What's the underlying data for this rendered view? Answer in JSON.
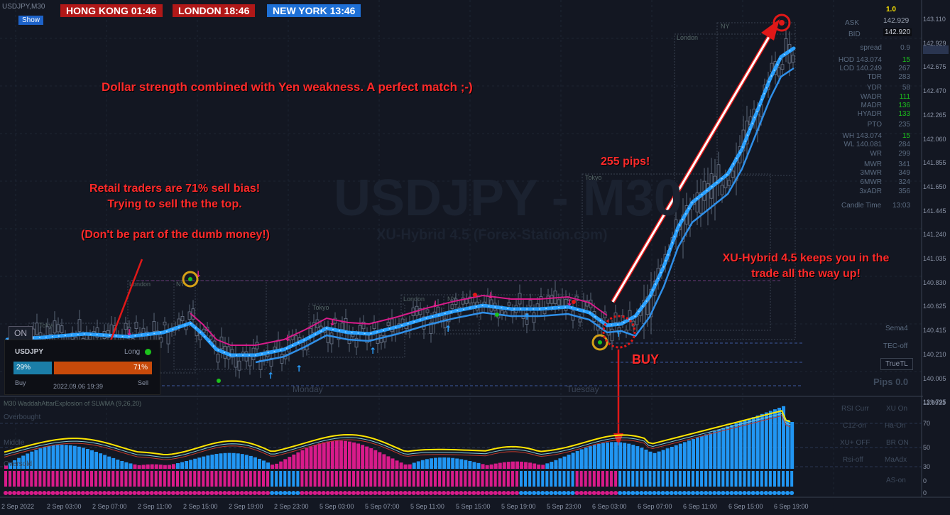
{
  "symbol_title": "USDJPY,M30",
  "show_button": "Show",
  "sessions": [
    {
      "label": "HONG KONG 01:46",
      "color": "#b01818"
    },
    {
      "label": "LONDON   18:46",
      "color": "#b01818"
    },
    {
      "label": "NEW YORK  13:46",
      "color": "#1e70d6"
    }
  ],
  "watermark": {
    "title": "USDJPY - M30",
    "subtitle": "XU-Hybrid 4.5 (Forex-Station.com)"
  },
  "annotations": {
    "headline": "Dollar strength combined with Yen weakness. A perfect match ;-)",
    "retail_1": "Retail traders are 71% sell bias!",
    "retail_2": "Trying to sell the the top.",
    "retail_3": "(Don't be part of the dumb money!)",
    "pips": "255 pips!",
    "hybrid_1": "XU-Hybrid 4.5 keeps you in the",
    "hybrid_2": "trade all the way up!",
    "buy": "BUY"
  },
  "session_boxes": [
    "Tokyo",
    "London",
    "NY",
    "Tokyo",
    "London",
    "NY",
    "Tokyo",
    "London",
    "NY"
  ],
  "day_labels": [
    "Monday",
    "Tuesday"
  ],
  "sentiment": {
    "on_button": "ON",
    "symbol": "USDJPY",
    "long_label": "Long",
    "buy_pct": "29%",
    "sell_pct": "71%",
    "buy_value": 29,
    "sell_value": 71,
    "buy_label": "Buy",
    "sell_label": "Sell",
    "timestamp": "2022.09.06 19:39"
  },
  "info_panel": {
    "top_value": "1.0",
    "ask_label": "ASK",
    "ask_value": "142.929",
    "bid_label": "BID",
    "bid_value": "142.920",
    "rows": [
      {
        "l": "spread",
        "v": "0.9"
      },
      {
        "l": "HOD 143.074",
        "v": "15"
      },
      {
        "l": "LOD 140.249",
        "v": "267"
      },
      {
        "l": "TDR",
        "v": "283"
      },
      {
        "l": "YDR",
        "v": "58"
      },
      {
        "l": "WADR",
        "v": "111"
      },
      {
        "l": "MADR",
        "v": "136"
      },
      {
        "l": "HYADR",
        "v": "133"
      },
      {
        "l": "PTO",
        "v": "235"
      },
      {
        "l": "WH 143.074",
        "v": "15"
      },
      {
        "l": "WL 140.081",
        "v": "284"
      },
      {
        "l": "WR",
        "v": "299"
      },
      {
        "l": "MWR",
        "v": "341"
      },
      {
        "l": "3MWR",
        "v": "349"
      },
      {
        "l": "6MWR",
        "v": "324"
      },
      {
        "l": "3xADR",
        "v": "356"
      }
    ],
    "candle_time_label": "Candle Time",
    "candle_time_value": "13:03",
    "sema": "Sema4",
    "tec": "TEC-off",
    "truetl": "TrueTL",
    "pips": "Pips 0.0"
  },
  "price_axis": [
    "143.110",
    "142.929",
    "142.675",
    "142.470",
    "142.265",
    "142.060",
    "141.855",
    "141.650",
    "141.445",
    "141.240",
    "141.035",
    "140.830",
    "140.625",
    "140.415",
    "140.210",
    "140.005",
    "139.795"
  ],
  "indicator": {
    "title": "M30 WaddahAttarExplosion of SLWMA (9,26,20)",
    "top_value": "11.9923",
    "levels": [
      "70",
      "50",
      "30",
      "0",
      "0"
    ],
    "left_labels": [
      "Overbought",
      "Middle",
      "Oversold"
    ],
    "buttons": [
      "RSI Curr",
      "XU On",
      "C12-on",
      "Ha-On",
      "XU+ OFF",
      "BR ON",
      "Rsi-off",
      "MaAdx",
      "AS-on"
    ]
  },
  "time_axis": [
    "2 Sep 2022",
    "2 Sep 03:00",
    "2 Sep 07:00",
    "2 Sep 11:00",
    "2 Sep 15:00",
    "2 Sep 19:00",
    "2 Sep 23:00",
    "5 Sep 03:00",
    "5 Sep 07:00",
    "5 Sep 11:00",
    "5 Sep 15:00",
    "5 Sep 19:00",
    "5 Sep 23:00",
    "6 Sep 03:00",
    "6 Sep 07:00",
    "6 Sep 11:00",
    "6 Sep 15:00",
    "6 Sep 19:00"
  ],
  "colors": {
    "bull": "#2196f3",
    "bear": "#e91e8c",
    "annotation": "#ff2020",
    "accent": "#ffd600"
  }
}
